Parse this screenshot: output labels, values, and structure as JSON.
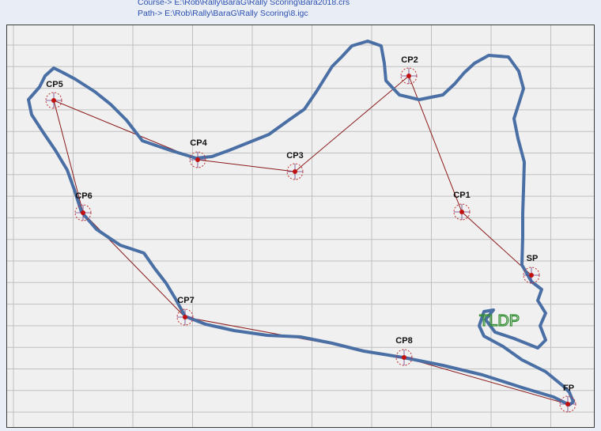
{
  "header": {
    "course_line": "Course-> E:\\Rob\\Rally\\BaraG\\Rally Scoring\\Bara2018.crs",
    "path_line": "Path-> E:\\Rob\\Rally\\BaraG\\Rally Scoring\\8.igc"
  },
  "colors": {
    "track": "#4a6fa5",
    "course_line": "#8b1a1a",
    "grid": "#bfbfbf",
    "cp_circle": "#c03030",
    "cp_center": "#c01010",
    "logo": "#2e8b2e"
  },
  "checkpoints": [
    {
      "id": "sp",
      "label": "SP"
    },
    {
      "id": "cp1",
      "label": "CP1"
    },
    {
      "id": "cp2",
      "label": "CP2"
    },
    {
      "id": "cp3",
      "label": "CP3"
    },
    {
      "id": "cp4",
      "label": "CP4"
    },
    {
      "id": "cp5",
      "label": "CP5"
    },
    {
      "id": "cp6",
      "label": "CP6"
    },
    {
      "id": "cp7",
      "label": "CP7"
    },
    {
      "id": "cp8",
      "label": "CP8"
    },
    {
      "id": "fp",
      "label": "FP"
    }
  ],
  "logo_text": "TLDP"
}
